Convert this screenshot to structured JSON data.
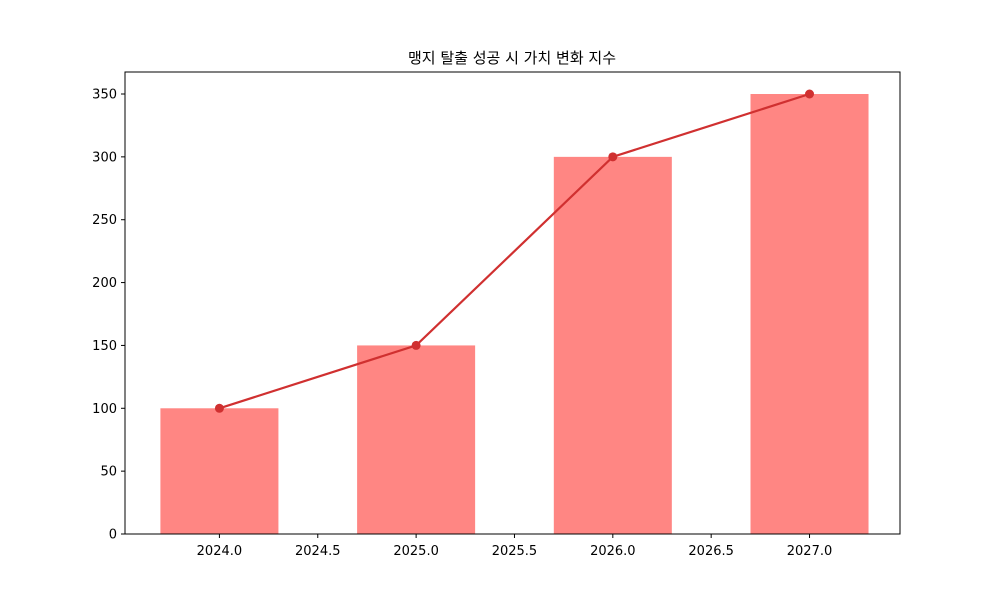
{
  "chart_data": {
    "type": "bar",
    "title": "맹지 탈출 성공 시 가치 변화 지수",
    "xlabel": "",
    "ylabel": "",
    "x": [
      2024,
      2025,
      2026,
      2027
    ],
    "values": [
      100,
      150,
      300,
      350
    ],
    "overlay_line": {
      "x": [
        2024,
        2025,
        2026,
        2027
      ],
      "values": [
        100,
        150,
        300,
        350
      ],
      "markers": true
    },
    "xlim": [
      2023.52,
      2027.46
    ],
    "ylim": [
      0,
      367.5
    ],
    "xticks": [
      "2024.0",
      "2024.5",
      "2025.0",
      "2025.5",
      "2026.0",
      "2026.5",
      "2027.0"
    ],
    "xtick_values": [
      2024.0,
      2024.5,
      2025.0,
      2025.5,
      2026.0,
      2026.5,
      2027.0
    ],
    "yticks": [
      "0",
      "50",
      "100",
      "150",
      "200",
      "250",
      "300",
      "350"
    ],
    "ytick_values": [
      0,
      50,
      100,
      150,
      200,
      250,
      300,
      350
    ],
    "bar_width": 0.6,
    "grid": false,
    "colors": {
      "bar": "#ff8683",
      "line": "#d03030"
    }
  }
}
